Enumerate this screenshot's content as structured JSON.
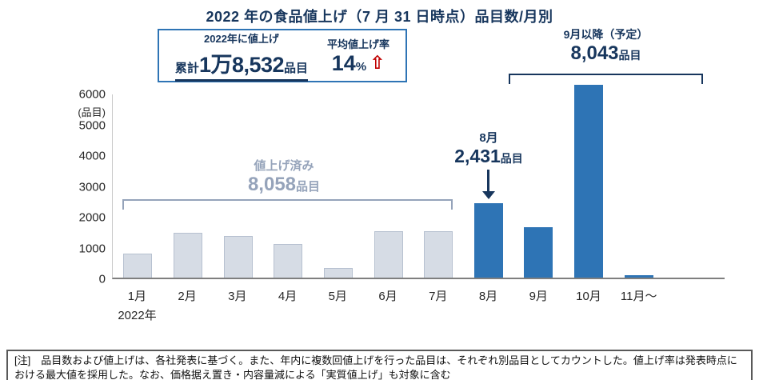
{
  "title": "2022 年の食品値上げ（7 月 31 日時点）品目数/月別",
  "summary_box": {
    "heading": "2022年に値上げ",
    "cumulative_prefix": "累計",
    "cumulative_value": "1万8,532",
    "cumulative_unit": "品目",
    "rate_heading": "平均値上げ率",
    "rate_value": "14",
    "rate_unit": "%"
  },
  "icons": {
    "up_arrow": "⇧"
  },
  "forecast": {
    "label": "9月以降（予定）",
    "value": "8,043",
    "unit": "品目"
  },
  "done": {
    "label": "値上げ済み",
    "value": "8,058",
    "unit": "品目"
  },
  "august": {
    "label": "8月",
    "value": "2,431",
    "unit": "品目"
  },
  "axis": {
    "y_unit": "(品目)",
    "year": "2022年"
  },
  "note": "[注]　品目数および値上げは、各社発表に基づく。また、年内に複数回値上げを行った品目は、それぞれ別品目としてカウントした。値上げ率は発表時点における最大値を採用した。なお、価格据え置き・内容量減による「実質値上げ」も対象に含む",
  "colors": {
    "navy": "#17365d",
    "bar_done": "#d6dce5",
    "bar_upcoming": "#2e74b5",
    "annotation_gray": "#95a3ba",
    "rate_arrow_red": "#c00000"
  },
  "chart_data": {
    "type": "bar",
    "title": "2022 年の食品値上げ（7 月 31 日時点）品目数/月別",
    "categories": [
      "1月",
      "2月",
      "3月",
      "4月",
      "5月",
      "6月",
      "7月",
      "8月",
      "9月",
      "10月",
      "11月～"
    ],
    "values": [
      795,
      1455,
      1353,
      1106,
      313,
      1523,
      1513,
      2431,
      1661,
      6305,
      77
    ],
    "xlabel": "2022年",
    "ylabel": "(品目)",
    "ylim": [
      0,
      6000
    ],
    "yticks": [
      0,
      1000,
      2000,
      3000,
      4000,
      5000,
      6000
    ],
    "grid": false,
    "legend": false,
    "split_index": 7,
    "annotations": [
      {
        "label": "値上げ済み",
        "value": "8,058品目",
        "covers": "1月〜7月"
      },
      {
        "label": "8月",
        "value": "2,431品目",
        "covers": "8月"
      },
      {
        "label": "9月以降（予定）",
        "value": "8,043品目",
        "covers": "9月〜11月～"
      }
    ]
  }
}
